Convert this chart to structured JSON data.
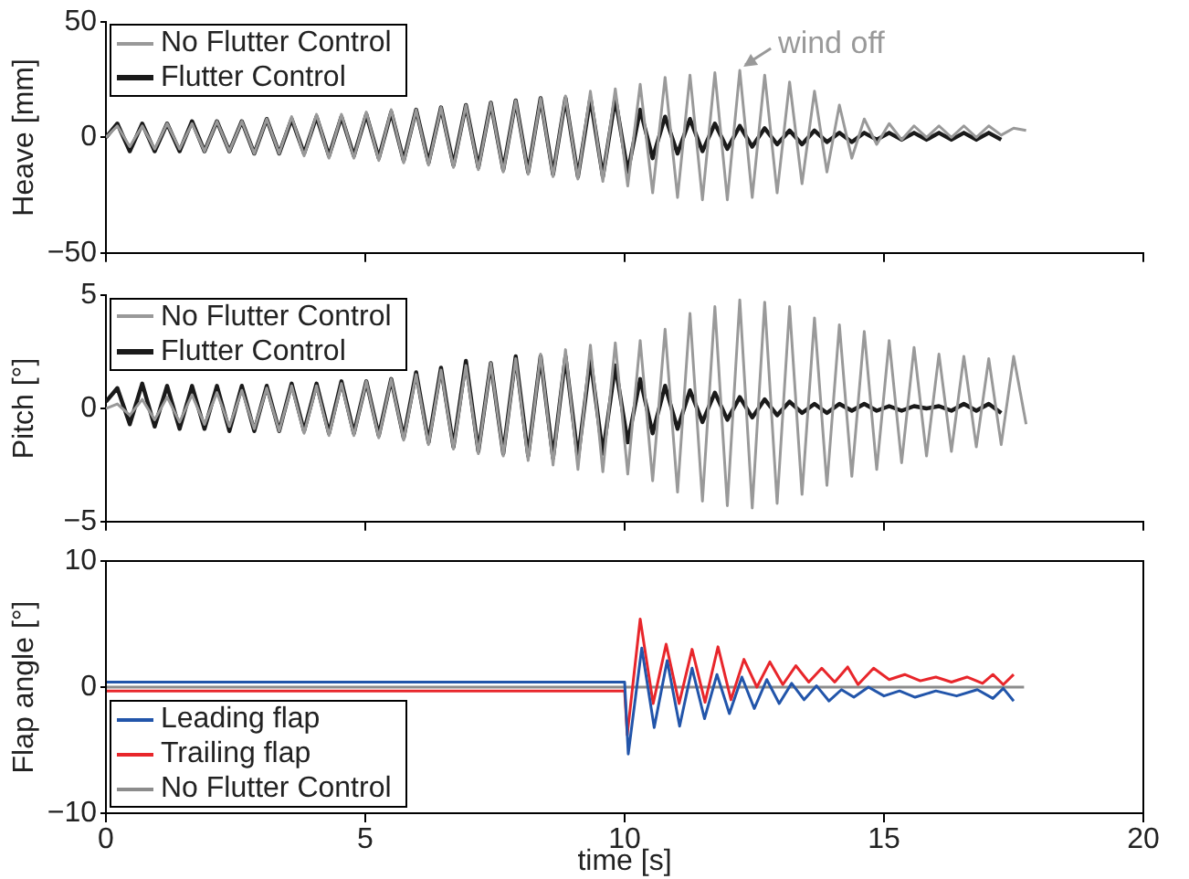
{
  "chart_data": [
    {
      "type": "line",
      "ylabel": "Heave [mm]",
      "xlim": [
        0,
        20
      ],
      "xticks": [
        0,
        5,
        10,
        15,
        20
      ],
      "ylim": [
        -50,
        50
      ],
      "yticks": [
        {
          "value": -50,
          "label": "−50"
        },
        0,
        50
      ],
      "tick_labels": "y",
      "legend": "top left",
      "annotations": [
        {
          "text": "wind off",
          "x": 12.22,
          "y": 29
        }
      ],
      "x": [
        0,
        0.22,
        0.46,
        0.7,
        0.94,
        1.18,
        1.42,
        1.66,
        1.9,
        2.14,
        2.38,
        2.62,
        2.86,
        3.1,
        3.34,
        3.58,
        3.82,
        4.06,
        4.3,
        4.54,
        4.78,
        5.02,
        5.26,
        5.5,
        5.74,
        5.98,
        6.22,
        6.46,
        6.7,
        6.94,
        7.18,
        7.42,
        7.66,
        7.9,
        8.14,
        8.38,
        8.62,
        8.86,
        9.1,
        9.34,
        9.58,
        9.82,
        10.06,
        10.3,
        10.54,
        10.78,
        11.02,
        11.26,
        11.5,
        11.74,
        11.98,
        12.22,
        12.46,
        12.7,
        12.94,
        13.18,
        13.42,
        13.66,
        13.9,
        14.14,
        14.38,
        14.62,
        14.86,
        15.1,
        15.34,
        15.58,
        15.82,
        16.06,
        16.3,
        16.54,
        16.78,
        17.02,
        17.26,
        17.5,
        17.74
      ],
      "series": [
        {
          "name": "No Flutter Control",
          "color": "#999999",
          "values": [
            0,
            5,
            -4,
            5,
            -5,
            6,
            -5,
            6,
            -6,
            7,
            -6,
            7,
            -7,
            8,
            -7,
            9,
            -8,
            10,
            -9,
            10,
            -9,
            11,
            -10,
            12,
            -11,
            12,
            -12,
            13,
            -13,
            14,
            -14,
            15,
            -15,
            16,
            -16,
            17,
            -17,
            18,
            -18,
            20,
            -19,
            21,
            -21,
            23,
            -24,
            26,
            -26,
            27,
            -27,
            28,
            -27,
            29,
            -26,
            27,
            -24,
            24,
            -20,
            20,
            -15,
            14,
            -9,
            8,
            -3,
            6,
            -1,
            5,
            0,
            5,
            0,
            5,
            0,
            5,
            1,
            4,
            3
          ]
        },
        {
          "name": "Flutter Control",
          "color": "#1a1a1a",
          "values": [
            0,
            6,
            -6,
            6,
            -6,
            6,
            -6,
            7,
            -6,
            7,
            -6,
            7,
            -7,
            8,
            -7,
            8,
            -7,
            9,
            -8,
            9,
            -8,
            10,
            -9,
            11,
            -10,
            12,
            -11,
            13,
            -12,
            14,
            -13,
            15,
            -14,
            16,
            -15,
            17,
            -16,
            17,
            -17,
            17,
            -17,
            17,
            -15,
            12,
            -9,
            9,
            -7,
            8,
            -6,
            6,
            -5,
            5,
            -4,
            4,
            -3,
            3,
            -3,
            3,
            -2,
            2,
            -2,
            2,
            -1,
            2,
            -1,
            2,
            -1,
            2,
            -1,
            2,
            -1,
            2,
            -1,
            null,
            null
          ]
        }
      ]
    },
    {
      "type": "line",
      "ylabel": "Pitch [°]",
      "xlim": [
        0,
        20
      ],
      "xticks": [
        0,
        5,
        10,
        15,
        20
      ],
      "ylim": [
        -5,
        5
      ],
      "yticks": [
        {
          "value": -5,
          "label": "−5"
        },
        0,
        5
      ],
      "tick_labels": "y",
      "legend": "top left",
      "x": [
        0,
        0.22,
        0.46,
        0.7,
        0.94,
        1.18,
        1.42,
        1.66,
        1.9,
        2.14,
        2.38,
        2.62,
        2.86,
        3.1,
        3.34,
        3.58,
        3.82,
        4.06,
        4.3,
        4.54,
        4.78,
        5.02,
        5.26,
        5.5,
        5.74,
        5.98,
        6.22,
        6.46,
        6.7,
        6.94,
        7.18,
        7.42,
        7.66,
        7.9,
        8.14,
        8.38,
        8.62,
        8.86,
        9.1,
        9.34,
        9.58,
        9.82,
        10.06,
        10.3,
        10.54,
        10.78,
        11.02,
        11.26,
        11.5,
        11.74,
        11.98,
        12.22,
        12.46,
        12.7,
        12.94,
        13.18,
        13.42,
        13.66,
        13.9,
        14.14,
        14.38,
        14.62,
        14.86,
        15.1,
        15.34,
        15.58,
        15.82,
        16.06,
        16.3,
        16.54,
        16.78,
        17.02,
        17.26,
        17.5,
        17.74
      ],
      "series": [
        {
          "name": "No Flutter Control",
          "color": "#999999",
          "values": [
            0,
            0.2,
            -0.3,
            0.4,
            -0.5,
            0.5,
            -0.6,
            0.6,
            -0.7,
            0.7,
            -0.8,
            0.8,
            -0.9,
            0.9,
            -1.0,
            1.0,
            -1.1,
            1.0,
            -1.2,
            1.1,
            -1.2,
            1.2,
            -1.3,
            1.3,
            -1.4,
            1.5,
            -1.6,
            1.7,
            -1.8,
            1.9,
            -2.0,
            2.0,
            -2.1,
            2.2,
            -2.3,
            2.4,
            -2.5,
            2.6,
            -2.7,
            2.8,
            -2.8,
            2.9,
            -2.9,
            3.0,
            -3.2,
            3.5,
            -3.7,
            4.2,
            -4.1,
            4.5,
            -4.3,
            4.8,
            -4.4,
            4.7,
            -4.2,
            4.5,
            -3.8,
            4.0,
            -3.4,
            3.7,
            -3.0,
            3.4,
            -2.7,
            3.0,
            -2.4,
            2.7,
            -2.1,
            2.4,
            -1.9,
            2.3,
            -1.7,
            2.2,
            -1.6,
            2.3,
            -0.7
          ]
        },
        {
          "name": "Flutter Control",
          "color": "#1a1a1a",
          "values": [
            0.3,
            0.9,
            -0.7,
            1.1,
            -0.8,
            1.0,
            -0.9,
            1.0,
            -0.9,
            1.0,
            -1.0,
            1.0,
            -1.0,
            1.0,
            -1.0,
            1.1,
            -1.0,
            1.1,
            -1.1,
            1.2,
            -1.1,
            1.2,
            -1.2,
            1.3,
            -1.3,
            1.6,
            -1.5,
            1.8,
            -1.7,
            2.1,
            -1.9,
            2.0,
            -2.0,
            2.3,
            -2.1,
            2.3,
            -2.2,
            2.3,
            -2.2,
            2.2,
            -2.0,
            1.9,
            -1.5,
            1.3,
            -1.1,
            1.0,
            -0.9,
            0.8,
            -0.6,
            0.7,
            -0.5,
            0.5,
            -0.4,
            0.4,
            -0.3,
            0.3,
            -0.2,
            0.2,
            -0.2,
            0.2,
            -0.1,
            0.2,
            -0.1,
            0.1,
            -0.1,
            0.1,
            0,
            0.1,
            -0.1,
            0.2,
            -0.1,
            0.2,
            -0.2,
            null,
            null
          ]
        }
      ]
    },
    {
      "type": "line",
      "ylabel": "Flap angle [°]",
      "xlabel": "time [s]",
      "xlim": [
        0,
        20
      ],
      "xticks": [
        0,
        5,
        10,
        15,
        20
      ],
      "ylim": [
        -10,
        10
      ],
      "yticks": [
        {
          "value": -10,
          "label": "−10"
        },
        0,
        10
      ],
      "legend": "bottom left",
      "series": [
        {
          "name": "Leading flap",
          "color": "#2255aa",
          "x": [
            0,
            10.0,
            10.07,
            10.33,
            10.57,
            10.82,
            11.06,
            11.3,
            11.54,
            11.78,
            12.02,
            12.26,
            12.5,
            12.74,
            12.98,
            13.22,
            13.46,
            13.7,
            13.94,
            14.18,
            14.42,
            14.7,
            15,
            15.3,
            15.6,
            16,
            16.4,
            16.8,
            17.1,
            17.3,
            17.5
          ],
          "values": [
            0.4,
            0.4,
            -5.3,
            3.1,
            -3.2,
            2.1,
            -3.1,
            1.5,
            -2.5,
            1.0,
            -2.1,
            0.8,
            -1.7,
            0.6,
            -1.3,
            0.3,
            -1.0,
            0.1,
            -1.1,
            -0.2,
            -0.8,
            0,
            -0.7,
            -0.3,
            -0.8,
            -0.3,
            -0.7,
            -0.2,
            -0.9,
            -0.1,
            -1.1
          ]
        },
        {
          "name": "Trailing flap",
          "color": "#e8262b",
          "x": [
            0,
            10.0,
            10.05,
            10.3,
            10.55,
            10.8,
            11.05,
            11.3,
            11.55,
            11.8,
            12.05,
            12.3,
            12.55,
            12.8,
            13.05,
            13.3,
            13.55,
            13.8,
            14.05,
            14.3,
            14.5,
            14.8,
            15.1,
            15.4,
            15.7,
            16,
            16.3,
            16.6,
            16.9,
            17.1,
            17.3,
            17.5
          ],
          "values": [
            -0.3,
            -0.3,
            -3.8,
            5.4,
            -1.3,
            3.4,
            -1.3,
            3.0,
            -1.2,
            3.2,
            -1.0,
            2.2,
            0,
            2.0,
            0.2,
            1.7,
            0.4,
            1.5,
            0.4,
            1.6,
            0.2,
            1.5,
            0.6,
            1.0,
            0.5,
            0.8,
            0.4,
            0.8,
            0.3,
            1.0,
            0.2,
            1.0
          ]
        },
        {
          "name": "No Flutter Control",
          "color": "#8c8c8c",
          "x": [
            0,
            17.7
          ],
          "values": [
            0,
            0
          ]
        }
      ]
    }
  ]
}
